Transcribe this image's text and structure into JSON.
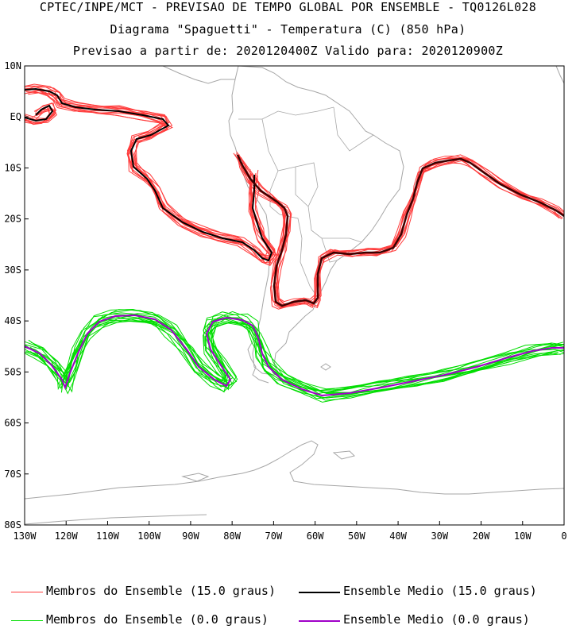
{
  "header": {
    "line1": "CPTEC/INPE/MCT - PREVISAO DE TEMPO GLOBAL POR ENSEMBLE - TQ0126L028",
    "line2": "Diagrama \"Spaguetti\" - Temperatura (C) (850 hPa)",
    "line3": "Previsao a partir de: 2020120400Z  Valido para: 2020120900Z"
  },
  "axes": {
    "lat_labels": [
      "10N",
      "EQ",
      "10S",
      "20S",
      "30S",
      "40S",
      "50S",
      "60S",
      "70S",
      "80S"
    ],
    "lon_labels": [
      "130W",
      "120W",
      "110W",
      "100W",
      "90W",
      "80W",
      "70W",
      "60W",
      "50W",
      "40W",
      "30W",
      "20W",
      "10W",
      "0"
    ]
  },
  "colors": {
    "members_15": "#ff3b3b",
    "mean_15": "#000000",
    "members_0": "#00dd00",
    "mean_0": "#a000c8",
    "coast": "#a6a6a6"
  },
  "legend": {
    "members_15": "Membros do Ensemble (15.0 graus)",
    "mean_15": "Ensemble Medio (15.0 graus)",
    "members_0": "Membros do Ensemble (0.0 graus)",
    "mean_0": "Ensemble Medio (0.0 graus)"
  }
}
